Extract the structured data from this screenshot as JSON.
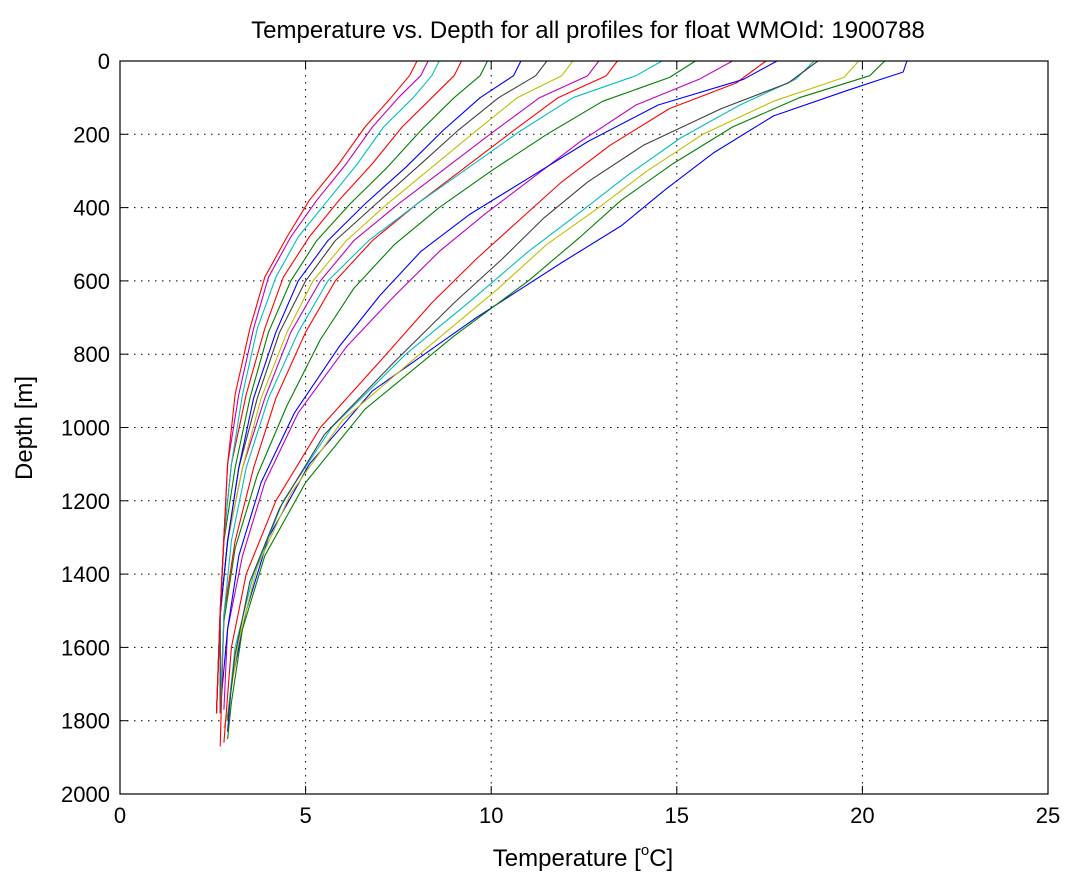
{
  "figure": {
    "background": "#ffffff"
  },
  "chart_data": {
    "type": "line",
    "title": "Temperature vs. Depth for all profiles for float WMOId: 1900788",
    "xlabel": {
      "prefix": "Temperature [",
      "superscript": "o",
      "suffix": "C]"
    },
    "ylabel": "Depth [m]",
    "xlim": [
      0,
      25
    ],
    "ylim": [
      0,
      2000
    ],
    "y_reversed": true,
    "grid": true,
    "grid_style": "dotted",
    "legend": "none",
    "x_ticks": [
      0,
      5,
      10,
      15,
      20,
      25
    ],
    "y_ticks": [
      0,
      200,
      400,
      600,
      800,
      1000,
      1200,
      1400,
      1600,
      1800,
      2000
    ],
    "x_tick_labels": [
      "0",
      "5",
      "10",
      "15",
      "20",
      "25"
    ],
    "y_tick_labels": [
      "0",
      "200",
      "400",
      "600",
      "800",
      "1000",
      "1200",
      "1400",
      "1600",
      "1800",
      "2000"
    ],
    "colors": [
      "#0000ff",
      "#008000",
      "#ff0000",
      "#00bfbf",
      "#bf00bf",
      "#bfbf00",
      "#404040"
    ],
    "series": [
      {
        "color": "#0000ff",
        "x": [
          21.2,
          21.1,
          19.6,
          17.6,
          16.0,
          14.7,
          13.5,
          11.9,
          9.6,
          6.8,
          5.1,
          4.0,
          3.4,
          3.0,
          2.9
        ],
        "y": [
          0,
          30,
          80,
          150,
          250,
          350,
          450,
          550,
          700,
          900,
          1100,
          1300,
          1500,
          1700,
          1830
        ]
      },
      {
        "color": "#008000",
        "x": [
          20.6,
          20.2,
          18.3,
          16.5,
          14.9,
          13.5,
          12.4,
          11.0,
          9.0,
          6.6,
          5.0,
          3.9,
          3.3,
          3.0,
          2.9
        ],
        "y": [
          0,
          40,
          100,
          180,
          280,
          380,
          480,
          600,
          750,
          950,
          1150,
          1350,
          1550,
          1750,
          1850
        ]
      },
      {
        "color": "#bfbf00",
        "x": [
          19.9,
          19.5,
          17.6,
          15.7,
          14.2,
          12.9,
          11.5,
          10.2,
          8.3,
          6.0,
          4.6,
          3.7,
          3.2,
          2.9,
          2.8
        ],
        "y": [
          0,
          45,
          110,
          200,
          300,
          400,
          500,
          620,
          780,
          980,
          1180,
          1380,
          1580,
          1780,
          1820
        ]
      },
      {
        "color": "#00bfbf",
        "x": [
          18.7,
          18.2,
          16.7,
          15.1,
          13.7,
          12.3,
          11.0,
          9.5,
          7.7,
          5.7,
          4.4,
          3.6,
          3.1,
          2.9
        ],
        "y": [
          0,
          50,
          120,
          210,
          310,
          420,
          520,
          650,
          800,
          1000,
          1200,
          1400,
          1600,
          1790
        ]
      },
      {
        "color": "#404040",
        "x": [
          18.8,
          18.0,
          16.2,
          14.1,
          12.6,
          11.4,
          10.3,
          9.0,
          7.4,
          5.5,
          4.3,
          3.5,
          3.1,
          2.9
        ],
        "y": [
          0,
          60,
          130,
          230,
          330,
          430,
          540,
          660,
          820,
          1020,
          1220,
          1420,
          1620,
          1800
        ]
      },
      {
        "color": "#ff0000",
        "x": [
          17.4,
          16.6,
          14.8,
          13.2,
          11.9,
          10.8,
          9.6,
          8.4,
          7.0,
          5.4,
          4.2,
          3.4,
          3.0,
          2.8
        ],
        "y": [
          0,
          60,
          130,
          230,
          330,
          430,
          540,
          660,
          820,
          1000,
          1200,
          1400,
          1600,
          1860
        ]
      },
      {
        "color": "#bf00bf",
        "x": [
          16.5,
          15.6,
          13.9,
          12.4,
          11.1,
          9.8,
          8.6,
          7.4,
          6.1,
          4.8,
          3.9,
          3.3,
          2.9,
          2.8
        ],
        "y": [
          0,
          50,
          120,
          220,
          320,
          420,
          520,
          640,
          780,
          960,
          1150,
          1350,
          1550,
          1770
        ]
      },
      {
        "color": "#0000ff",
        "x": [
          17.7,
          16.8,
          14.5,
          12.6,
          11.0,
          9.4,
          8.1,
          7.0,
          5.9,
          4.7,
          3.8,
          3.2,
          2.9,
          2.7
        ],
        "y": [
          0,
          50,
          120,
          220,
          320,
          420,
          520,
          640,
          780,
          960,
          1150,
          1350,
          1550,
          1770
        ]
      },
      {
        "color": "#008000",
        "x": [
          15.5,
          14.8,
          13.0,
          11.5,
          10.0,
          8.6,
          7.4,
          6.3,
          5.4,
          4.5,
          3.7,
          3.1,
          2.8,
          2.7
        ],
        "y": [
          0,
          45,
          110,
          200,
          300,
          400,
          500,
          620,
          760,
          940,
          1130,
          1330,
          1530,
          1770
        ]
      },
      {
        "color": "#ff0000",
        "x": [
          13.4,
          13.1,
          11.8,
          10.6,
          9.3,
          8.0,
          6.8,
          5.8,
          5.0,
          4.2,
          3.6,
          3.1,
          2.8,
          2.7
        ],
        "y": [
          0,
          40,
          100,
          190,
          290,
          390,
          490,
          600,
          740,
          920,
          1110,
          1310,
          1510,
          1870
        ]
      },
      {
        "color": "#00bfbf",
        "x": [
          14.6,
          13.9,
          12.2,
          10.8,
          9.4,
          8.0,
          6.7,
          5.6,
          4.8,
          4.0,
          3.4,
          3.0,
          2.8,
          2.7
        ],
        "y": [
          0,
          40,
          100,
          190,
          290,
          390,
          490,
          600,
          740,
          920,
          1110,
          1310,
          1510,
          1770
        ]
      },
      {
        "color": "#bf00bf",
        "x": [
          12.9,
          12.6,
          11.3,
          10.1,
          8.8,
          7.5,
          6.3,
          5.4,
          4.6,
          3.9,
          3.3,
          2.9,
          2.7,
          2.7
        ],
        "y": [
          0,
          40,
          100,
          190,
          290,
          390,
          490,
          600,
          740,
          920,
          1110,
          1310,
          1510,
          1780
        ]
      },
      {
        "color": "#bfbf00",
        "x": [
          12.2,
          11.9,
          10.7,
          9.6,
          8.4,
          7.2,
          6.1,
          5.2,
          4.5,
          3.8,
          3.3,
          2.9,
          2.7,
          2.7
        ],
        "y": [
          0,
          40,
          100,
          190,
          290,
          390,
          490,
          600,
          740,
          920,
          1110,
          1310,
          1510,
          1780
        ]
      },
      {
        "color": "#404040",
        "x": [
          11.5,
          11.2,
          10.2,
          9.1,
          8.0,
          6.9,
          5.8,
          5.0,
          4.3,
          3.7,
          3.2,
          2.9,
          2.7,
          2.7
        ],
        "y": [
          0,
          40,
          100,
          190,
          290,
          390,
          490,
          600,
          740,
          920,
          1110,
          1310,
          1510,
          1780
        ]
      },
      {
        "color": "#0000ff",
        "x": [
          10.8,
          10.6,
          9.7,
          8.7,
          7.7,
          6.6,
          5.6,
          4.8,
          4.2,
          3.6,
          3.2,
          2.9,
          2.7,
          2.6
        ],
        "y": [
          0,
          40,
          100,
          190,
          290,
          390,
          490,
          600,
          740,
          920,
          1110,
          1310,
          1510,
          1780
        ]
      },
      {
        "color": "#008000",
        "x": [
          9.9,
          9.7,
          9.0,
          8.1,
          7.2,
          6.2,
          5.3,
          4.6,
          4.0,
          3.5,
          3.1,
          2.8,
          2.7,
          2.6
        ],
        "y": [
          0,
          40,
          100,
          190,
          290,
          390,
          490,
          600,
          740,
          920,
          1110,
          1310,
          1510,
          1780
        ]
      },
      {
        "color": "#ff0000",
        "x": [
          9.2,
          9.0,
          8.4,
          7.6,
          6.8,
          5.9,
          5.1,
          4.4,
          3.9,
          3.4,
          3.0,
          2.8,
          2.7,
          2.6
        ],
        "y": [
          0,
          40,
          100,
          180,
          280,
          380,
          480,
          590,
          730,
          910,
          1100,
          1300,
          1500,
          1780
        ]
      },
      {
        "color": "#00bfbf",
        "x": [
          8.6,
          8.4,
          7.9,
          7.1,
          6.4,
          5.6,
          4.8,
          4.2,
          3.7,
          3.3,
          3.0,
          2.8,
          2.7,
          2.6
        ],
        "y": [
          0,
          40,
          100,
          180,
          280,
          380,
          480,
          590,
          730,
          910,
          1100,
          1300,
          1500,
          1780
        ]
      },
      {
        "color": "#bf00bf",
        "x": [
          8.3,
          8.1,
          7.5,
          6.8,
          6.1,
          5.3,
          4.6,
          4.0,
          3.6,
          3.2,
          2.9,
          2.8,
          2.7,
          2.6
        ],
        "y": [
          0,
          40,
          100,
          180,
          280,
          380,
          480,
          590,
          730,
          910,
          1100,
          1300,
          1500,
          1780
        ]
      },
      {
        "color": "#ff0000",
        "x": [
          8.0,
          7.8,
          7.3,
          6.6,
          5.9,
          5.1,
          4.5,
          3.9,
          3.5,
          3.1,
          2.9,
          2.8,
          2.7,
          2.6
        ],
        "y": [
          0,
          40,
          100,
          180,
          280,
          380,
          480,
          590,
          730,
          910,
          1100,
          1300,
          1500,
          1780
        ]
      }
    ]
  }
}
